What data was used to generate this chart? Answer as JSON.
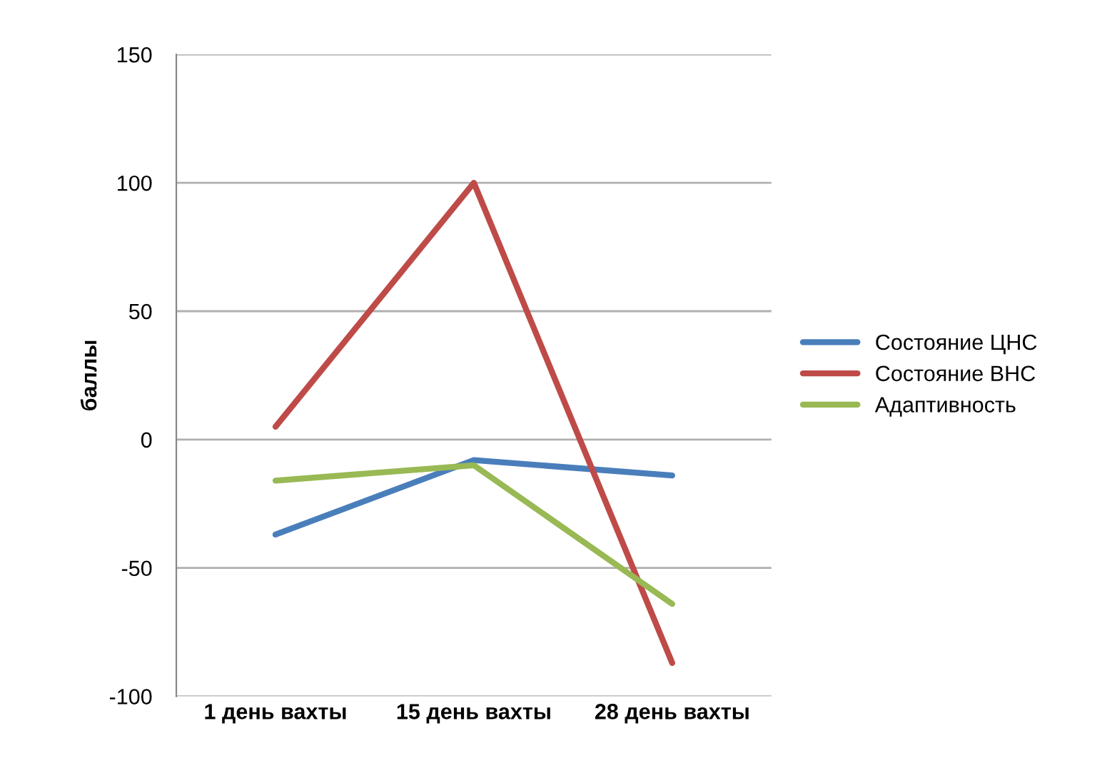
{
  "chart_data": {
    "type": "line",
    "ylabel": "баллы",
    "categories": [
      "1 день вахты",
      "15 день вахты",
      "28 день вахты"
    ],
    "series": [
      {
        "name": "Состояние ЦНС",
        "color": "#4a7ebb",
        "values": [
          -37,
          -8,
          -14
        ]
      },
      {
        "name": "Состояние ВНС",
        "color": "#be4b48",
        "values": [
          5,
          100,
          -87
        ]
      },
      {
        "name": "Адаптивность",
        "color": "#98b954",
        "values": [
          -16,
          -10,
          -64
        ]
      }
    ],
    "ylim": [
      -100,
      150
    ],
    "yticks": [
      -100,
      -50,
      0,
      50,
      100,
      150
    ],
    "grid": "y",
    "legend": "right",
    "marker": "none",
    "line_style": "solid"
  }
}
